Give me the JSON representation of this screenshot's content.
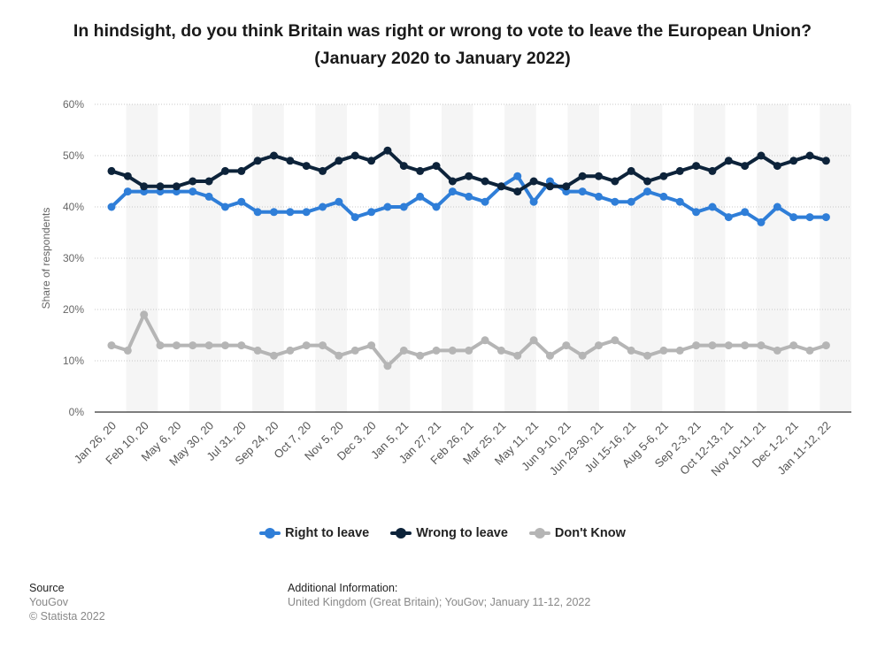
{
  "title": "In hindsight, do you think Britain was right or wrong to vote to leave the European Union? (January 2020 to January 2022)",
  "chart_data": {
    "type": "line",
    "ylabel": "Share of respondents",
    "ylim": [
      0,
      60
    ],
    "y_ticks": [
      "0%",
      "10%",
      "20%",
      "30%",
      "40%",
      "50%",
      "60%"
    ],
    "grid": true,
    "legend_position": "bottom",
    "x_tick_labels": [
      "Jan 26, 20",
      "Feb 10, 20",
      "May 6, 20",
      "May 30, 20",
      "Jul 31, 20",
      "Sep 24, 20",
      "Oct 7, 20",
      "Nov 5, 20",
      "Dec 3, 20",
      "Jan 5, 21",
      "Jan 27, 21",
      "Feb 26, 21",
      "Mar 25, 21",
      "May 11, 21",
      "Jun 9-10, 21",
      "Jun 29-30, 21",
      "Jul 15-16, 21",
      "Aug 5-6, 21",
      "Sep 2-3, 21",
      "Oct 12-13, 21",
      "Nov 10-11, 21",
      "Dec 1-2, 21",
      "Jan 11-12, 22"
    ],
    "series": [
      {
        "name": "Right to leave",
        "color": "#2f7ed8",
        "values": [
          40,
          43,
          43,
          43,
          43,
          43,
          42,
          40,
          41,
          39,
          39,
          39,
          39,
          40,
          41,
          38,
          39,
          40,
          40,
          42,
          40,
          43,
          42,
          41,
          44,
          46,
          41,
          45,
          43,
          43,
          42,
          41,
          41,
          43,
          42,
          41,
          39,
          40,
          38,
          39,
          37,
          40,
          38,
          38,
          38
        ]
      },
      {
        "name": "Wrong to leave",
        "color": "#0d233a",
        "values": [
          47,
          46,
          44,
          44,
          44,
          45,
          45,
          47,
          47,
          49,
          50,
          49,
          48,
          47,
          49,
          50,
          49,
          51,
          48,
          47,
          48,
          45,
          46,
          45,
          44,
          43,
          45,
          44,
          44,
          46,
          46,
          45,
          47,
          45,
          46,
          47,
          48,
          47,
          49,
          48,
          50,
          48,
          49,
          50,
          49
        ]
      },
      {
        "name": "Don't Know",
        "color": "#b5b5b5",
        "values": [
          13,
          12,
          19,
          13,
          13,
          13,
          13,
          13,
          13,
          12,
          11,
          12,
          13,
          13,
          11,
          12,
          13,
          9,
          12,
          11,
          12,
          12,
          12,
          14,
          12,
          11,
          14,
          11,
          13,
          11,
          13,
          14,
          12,
          11,
          12,
          12,
          13,
          13,
          13,
          13,
          13,
          12,
          13,
          12,
          13
        ]
      }
    ]
  },
  "footer": {
    "source_label": "Source",
    "source_lines": [
      "YouGov",
      "© Statista 2022"
    ],
    "info_label": "Additional Information:",
    "info_text": "United Kingdom (Great Britain); YouGov; January 11-12, 2022"
  }
}
